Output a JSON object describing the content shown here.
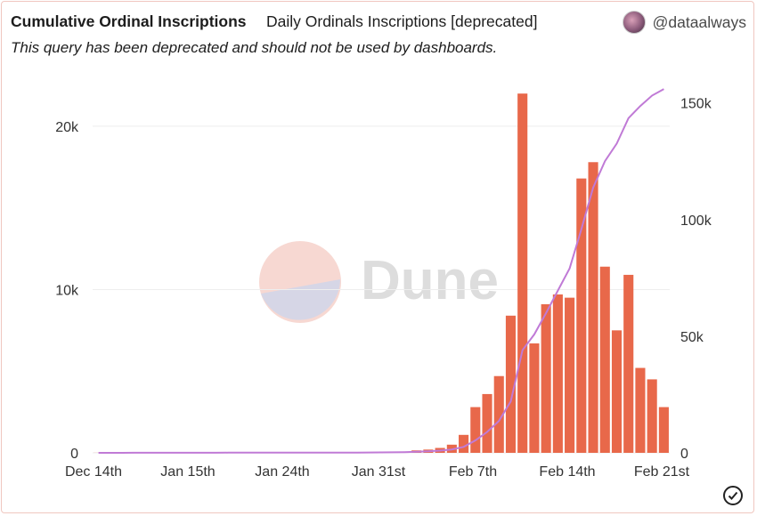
{
  "header": {
    "query_title": "Cumulative Ordinal Inscriptions",
    "visualization_name": "Daily Ordinals Inscriptions [deprecated]",
    "owner_handle": "@dataalways",
    "deprecation_notice": "This query has been deprecated and should not be used by dashboards."
  },
  "watermark": {
    "text": "Dune"
  },
  "colors": {
    "bar": "#e8684a",
    "line": "#c07ad6",
    "grid": "#eeeeee",
    "axis_text": "#333333"
  },
  "icons": {
    "status": "check-circle-icon",
    "owner_avatar": "avatar-image"
  },
  "chart_data": {
    "type": "bar+line",
    "title": "",
    "x_tick_labels": [
      "Dec 14th",
      "Jan 15th",
      "Jan 24th",
      "Jan 31st",
      "Feb 7th",
      "Feb 14th",
      "Feb 21st"
    ],
    "y_left": {
      "ticks": [
        "0",
        "10k",
        "20k"
      ],
      "lim": [
        0,
        22500
      ]
    },
    "y_right": {
      "ticks": [
        "0",
        "50k",
        "100k",
        "150k"
      ],
      "lim": [
        0,
        157500
      ]
    },
    "grid": true,
    "series": [
      {
        "kind": "bar",
        "axis": "left",
        "values": [
          5,
          5,
          5,
          5,
          5,
          5,
          5,
          5,
          5,
          5,
          5,
          5,
          5,
          5,
          5,
          5,
          5,
          5,
          5,
          5,
          5,
          10,
          10,
          30,
          30,
          50,
          70,
          150,
          200,
          300,
          500,
          1100,
          2800,
          3600,
          4700,
          8400,
          22000,
          6700,
          9100,
          9700,
          9500,
          16800,
          17800,
          11400,
          7500,
          10900,
          5200,
          4500,
          2800
        ]
      },
      {
        "kind": "line",
        "axis": "right",
        "values": [
          5,
          10,
          15,
          20,
          25,
          30,
          35,
          40,
          45,
          50,
          55,
          60,
          65,
          70,
          75,
          80,
          85,
          90,
          95,
          100,
          105,
          115,
          125,
          155,
          185,
          235,
          305,
          455,
          655,
          955,
          1455,
          2555,
          5355,
          8955,
          13655,
          22055,
          44055,
          50755,
          59855,
          69555,
          79055,
          95855,
          113655,
          125055,
          132555,
          143455,
          148655,
          153155,
          155955
        ]
      }
    ]
  }
}
